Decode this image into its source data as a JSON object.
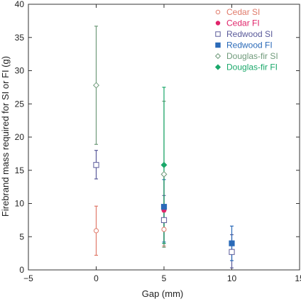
{
  "chart_data": {
    "type": "scatter",
    "title": "",
    "xlabel": "Gap (mm)",
    "ylabel": "Firebrand mass required for SI or FI (g)",
    "xlim": [
      -5,
      15
    ],
    "ylim": [
      0,
      40
    ],
    "xticks": [
      -5,
      0,
      5,
      10,
      15
    ],
    "yticks": [
      0,
      5,
      10,
      15,
      20,
      25,
      30,
      35,
      40
    ],
    "grid": false,
    "legend_position": "top-right",
    "series": [
      {
        "name": "Cedar SI",
        "color": "#e07a6a",
        "marker": "circle-open",
        "points": [
          {
            "x": 0,
            "y": 5.9,
            "err_low": 2.2,
            "err_high": 9.6
          },
          {
            "x": 5,
            "y": 6.1,
            "err_low": 3.6,
            "err_high": 8.7
          }
        ]
      },
      {
        "name": "Cedar FI",
        "color": "#e0246a",
        "marker": "circle-filled",
        "points": [
          {
            "x": 5,
            "y": 9.0,
            "err_low": 4.0,
            "err_high": 14.2
          }
        ]
      },
      {
        "name": "Redwood SI",
        "color": "#5a5a9a",
        "marker": "square-open",
        "points": [
          {
            "x": 0,
            "y": 15.8,
            "err_low": 13.7,
            "err_high": 18.0
          },
          {
            "x": 5,
            "y": 7.5,
            "err_low": 4.0,
            "err_high": 11.2
          },
          {
            "x": 10,
            "y": 2.7,
            "err_low": 0.3,
            "err_high": 5.3
          }
        ]
      },
      {
        "name": "Redwood FI",
        "color": "#2a6ab8",
        "marker": "square-filled",
        "points": [
          {
            "x": 5,
            "y": 9.5,
            "err_low": 4.2,
            "err_high": 13.6
          },
          {
            "x": 10,
            "y": 4.0,
            "err_low": 1.4,
            "err_high": 6.6
          }
        ]
      },
      {
        "name": "Douglas-fir SI",
        "color": "#6f9a7a",
        "marker": "diamond-open",
        "points": [
          {
            "x": 0,
            "y": 27.8,
            "err_low": 18.9,
            "err_high": 36.7
          },
          {
            "x": 5,
            "y": 14.4,
            "err_low": 3.4,
            "err_high": 25.4
          }
        ]
      },
      {
        "name": "Douglas-fir FI",
        "color": "#1aa86a",
        "marker": "diamond-filled",
        "points": [
          {
            "x": 5,
            "y": 15.8,
            "err_low": 4.0,
            "err_high": 27.5
          }
        ]
      }
    ]
  }
}
